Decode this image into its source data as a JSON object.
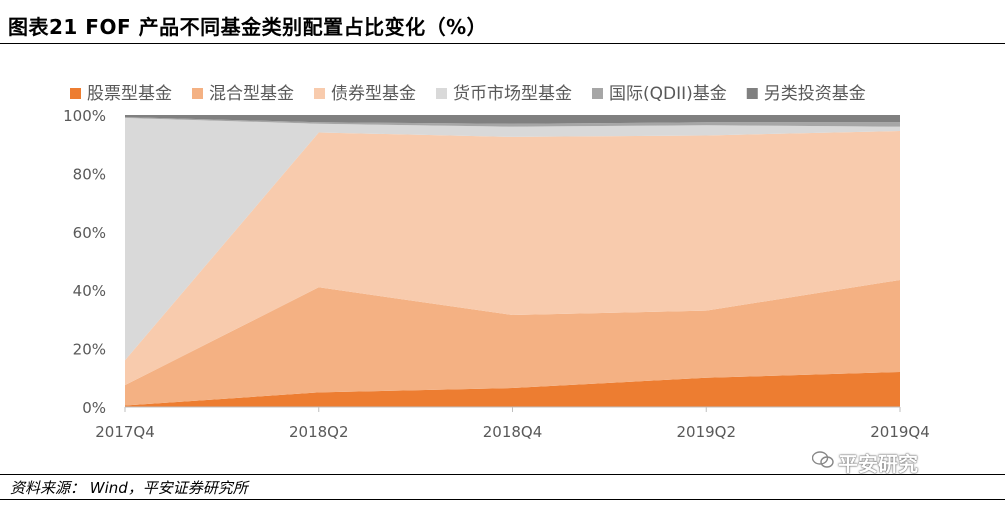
{
  "header": {
    "title": "图表21    FOF 产品不同基金类别配置占比变化（%）"
  },
  "footer": {
    "source": "资料来源：  Wind，平安证券研究所"
  },
  "watermark": {
    "text": "平安研究"
  },
  "chart_data": {
    "type": "area",
    "stacked": true,
    "percent": true,
    "categories": [
      "2017Q4",
      "2018Q2",
      "2018Q4",
      "2019Q2",
      "2019Q4"
    ],
    "series": [
      {
        "name": "股票型基金",
        "color": "#ED7D31",
        "values": [
          0.5,
          5,
          6.5,
          10,
          12
        ]
      },
      {
        "name": "混合型基金",
        "color": "#F4B183",
        "values": [
          7,
          36,
          25,
          23,
          31.5
        ]
      },
      {
        "name": "债券型基金",
        "color": "#F8CBAD",
        "values": [
          8.5,
          53,
          61,
          60,
          51
        ]
      },
      {
        "name": "货币市场型基金",
        "color": "#D9D9D9",
        "values": [
          83,
          3,
          3.5,
          3.5,
          1.5
        ]
      },
      {
        "name": "国际(QDII)基金",
        "color": "#A6A6A6",
        "values": [
          0.3,
          0.5,
          1.0,
          1.0,
          1.5
        ]
      },
      {
        "name": "另类投资基金",
        "color": "#808080",
        "values": [
          0.7,
          2.5,
          3.0,
          2.5,
          2.5
        ]
      }
    ],
    "y_ticks": [
      "0%",
      "20%",
      "40%",
      "60%",
      "80%",
      "100%"
    ],
    "ylim": [
      0,
      100
    ],
    "legend_position": "top",
    "grid": false
  }
}
